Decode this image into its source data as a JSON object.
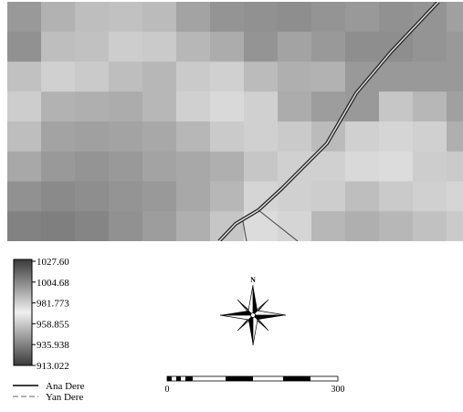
{
  "raster": {
    "rows": [
      [
        0.55,
        0.38,
        0.3,
        0.28,
        0.32,
        0.48,
        0.58,
        0.6,
        0.62,
        0.58,
        0.55,
        0.6,
        0.58,
        0.5
      ],
      [
        0.6,
        0.3,
        0.28,
        0.2,
        0.22,
        0.35,
        0.42,
        0.58,
        0.48,
        0.55,
        0.62,
        0.62,
        0.58,
        0.55
      ],
      [
        0.28,
        0.18,
        0.22,
        0.3,
        0.35,
        0.22,
        0.18,
        0.32,
        0.4,
        0.38,
        0.55,
        0.55,
        0.55,
        0.55
      ],
      [
        0.2,
        0.38,
        0.4,
        0.42,
        0.35,
        0.18,
        0.12,
        0.18,
        0.42,
        0.52,
        0.55,
        0.25,
        0.35,
        0.5
      ],
      [
        0.3,
        0.48,
        0.5,
        0.48,
        0.45,
        0.35,
        0.22,
        0.18,
        0.22,
        0.32,
        0.18,
        0.15,
        0.18,
        0.4
      ],
      [
        0.45,
        0.55,
        0.58,
        0.55,
        0.48,
        0.45,
        0.4,
        0.25,
        0.18,
        0.18,
        0.12,
        0.1,
        0.2,
        0.22
      ],
      [
        0.6,
        0.65,
        0.62,
        0.58,
        0.55,
        0.45,
        0.35,
        0.15,
        0.18,
        0.2,
        0.3,
        0.22,
        0.18,
        0.15
      ],
      [
        0.7,
        0.72,
        0.68,
        0.6,
        0.52,
        0.4,
        0.25,
        0.1,
        0.15,
        0.35,
        0.4,
        0.35,
        0.28,
        0.22
      ]
    ]
  },
  "legend": {
    "ticks": [
      "1027.60",
      "1004.68",
      "981.773",
      "958.855",
      "935.938",
      "913.022"
    ],
    "streams": [
      {
        "label": "Ana Dere",
        "style": "solid",
        "color": "#000000"
      },
      {
        "label": "Yan Dere",
        "style": "dashed",
        "color": "#888888"
      }
    ]
  },
  "north_arrow": {
    "label": "N"
  },
  "scale_bar": {
    "start": "0",
    "end": "300"
  }
}
